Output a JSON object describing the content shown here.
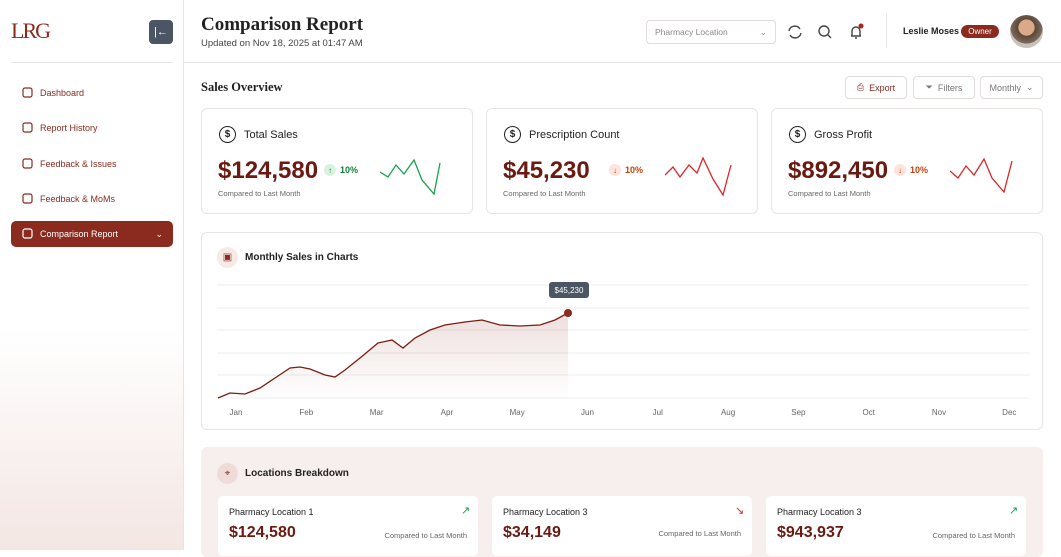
{
  "sidebar": {
    "logo": "LRG",
    "nav": [
      "Dashboard",
      "Report History",
      "Feedback & Issues",
      "Feedback & MoMs",
      "Comparison Report"
    ],
    "active": 4
  },
  "header": {
    "title": "Comparison Report",
    "updated": "Updated on Nov 18, 2025 at 01:47 AM",
    "location_placeholder": "Pharmacy Location",
    "user": "Leslie Moses",
    "role": "Owner"
  },
  "overview": {
    "title": "Sales Overview",
    "buttons": [
      "Export",
      "Filters"
    ],
    "period": "Monthly"
  },
  "cards": [
    {
      "title": "Total Sales",
      "value": "$124,580",
      "change": "10%",
      "trend": "up",
      "note": "Compared to Last Month"
    },
    {
      "title": "Prescription Count",
      "value": "$45,230",
      "change": "10%",
      "trend": "down",
      "note": "Compared to Last Month"
    },
    {
      "title": "Gross Profit",
      "value": "$892,450",
      "change": "10%",
      "trend": "down",
      "note": "Compared to Last Month"
    }
  ],
  "monthly_chart": {
    "title": "Monthly Sales in Charts",
    "months": [
      "Jan",
      "Feb",
      "Mar",
      "Apr",
      "May",
      "Jun",
      "Jul",
      "Aug",
      "Sep",
      "Oct",
      "Nov",
      "Dec"
    ],
    "tooltip": "$45,230"
  },
  "locations": {
    "title": "Locations Breakdown",
    "items": [
      {
        "name": "Pharmacy Location 1",
        "value": "$124,580",
        "trend": "up",
        "note": "Compared to Last Month"
      },
      {
        "name": "Pharmacy Location 3",
        "value": "$34,149",
        "trend": "down",
        "note": "Compared to Last Month"
      },
      {
        "name": "Pharmacy Location 3",
        "value": "$943,937",
        "trend": "up",
        "note": "Compared to Last Month"
      }
    ]
  }
}
